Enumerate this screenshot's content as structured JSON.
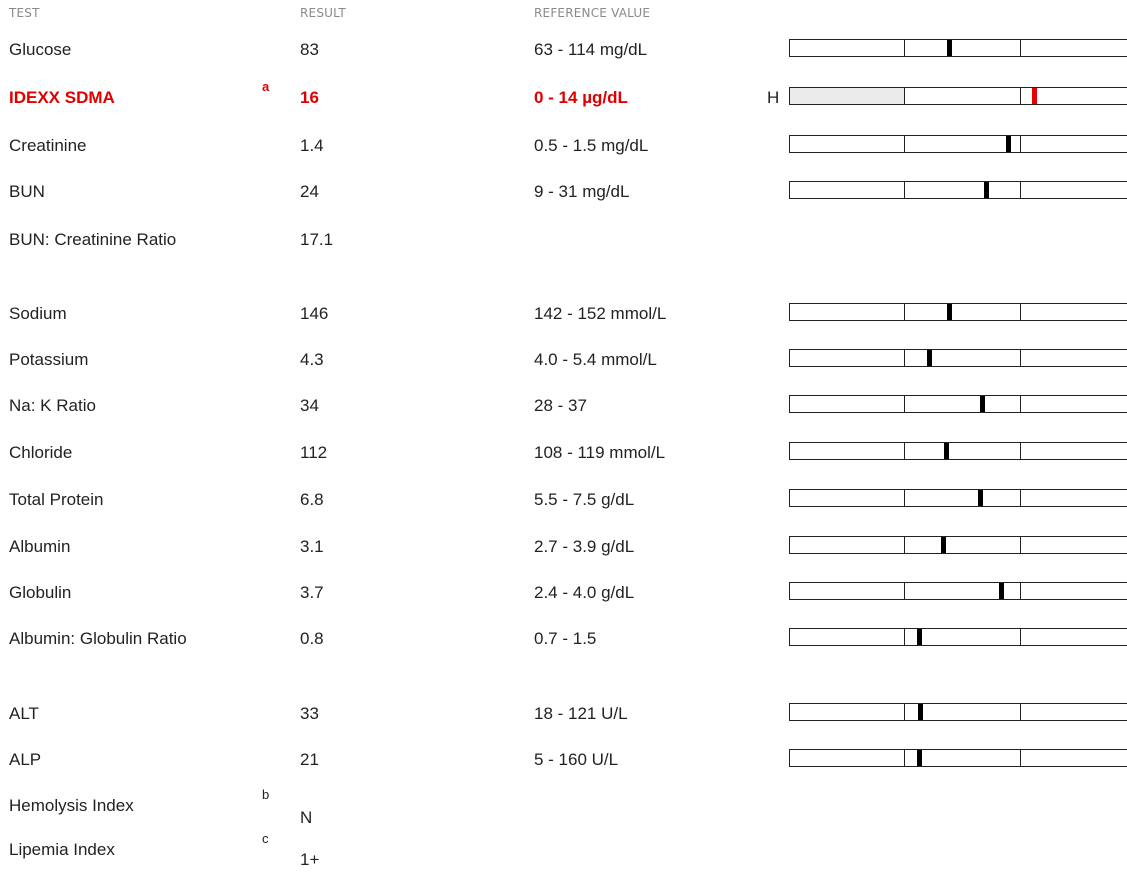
{
  "headers": {
    "test": "TEST",
    "result": "RESULT",
    "reference": "REFERENCE VALUE"
  },
  "rows": [
    {
      "test": "Glucose",
      "note": "",
      "result": "83",
      "reference": "63 - 114 mg/dL",
      "flag": "",
      "gauge": true,
      "position_fraction": 0.465,
      "high": false
    },
    {
      "test": "IDEXX SDMA",
      "note": "a",
      "result": "16",
      "reference": "0 - 14 µg/dL",
      "flag": "H",
      "gauge": true,
      "position_fraction": 0.71,
      "high": true,
      "shaded": true
    },
    {
      "test": "Creatinine",
      "note": "",
      "result": "1.4",
      "reference": "0.5 - 1.5 mg/dL",
      "flag": "",
      "gauge": true,
      "position_fraction": 0.635,
      "high": false
    },
    {
      "test": "BUN",
      "note": "",
      "result": "24",
      "reference": "9 - 31 mg/dL",
      "flag": "",
      "gauge": true,
      "position_fraction": 0.57,
      "high": false
    },
    {
      "test": "BUN: Creatinine Ratio",
      "note": "",
      "result": "17.1",
      "reference": "",
      "flag": "",
      "gauge": false,
      "position_fraction": null,
      "high": false
    },
    {
      "test": "Sodium",
      "note": "",
      "result": "146",
      "reference": "142 - 152 mmol/L",
      "flag": "",
      "gauge": true,
      "position_fraction": 0.465,
      "high": false
    },
    {
      "test": "Potassium",
      "note": "",
      "result": "4.3",
      "reference": "4.0 - 5.4 mmol/L",
      "flag": "",
      "gauge": true,
      "position_fraction": 0.405,
      "high": false
    },
    {
      "test": "Na: K Ratio",
      "note": "",
      "result": "34",
      "reference": "28 - 37",
      "flag": "",
      "gauge": true,
      "position_fraction": 0.56,
      "high": false
    },
    {
      "test": "Chloride",
      "note": "",
      "result": "112",
      "reference": "108 - 119 mmol/L",
      "flag": "",
      "gauge": true,
      "position_fraction": 0.455,
      "high": false
    },
    {
      "test": "Total Protein",
      "note": "",
      "result": "6.8",
      "reference": "5.5 - 7.5 g/dL",
      "flag": "",
      "gauge": true,
      "position_fraction": 0.555,
      "high": false
    },
    {
      "test": "Albumin",
      "note": "",
      "result": "3.1",
      "reference": "2.7 - 3.9 g/dL",
      "flag": "",
      "gauge": true,
      "position_fraction": 0.445,
      "high": false
    },
    {
      "test": "Globulin",
      "note": "",
      "result": "3.7",
      "reference": "2.4 - 4.0 g/dL",
      "flag": "",
      "gauge": true,
      "position_fraction": 0.615,
      "high": false
    },
    {
      "test": "Albumin: Globulin Ratio",
      "note": "",
      "result": "0.8",
      "reference": "0.7 - 1.5",
      "flag": "",
      "gauge": true,
      "position_fraction": 0.375,
      "high": false
    },
    {
      "test": "ALT",
      "note": "",
      "result": "33",
      "reference": "18 - 121 U/L",
      "flag": "",
      "gauge": true,
      "position_fraction": 0.38,
      "high": false
    },
    {
      "test": "ALP",
      "note": "",
      "result": "21",
      "reference": "5 - 160 U/L",
      "flag": "",
      "gauge": true,
      "position_fraction": 0.375,
      "high": false
    },
    {
      "test": "Hemolysis Index",
      "note": "b",
      "result": "N",
      "reference": "",
      "flag": "",
      "gauge": false,
      "position_fraction": null,
      "high": false
    },
    {
      "test": "Lipemia Index",
      "note": "c",
      "result": "1+",
      "reference": "",
      "flag": "",
      "gauge": false,
      "position_fraction": null,
      "high": false
    }
  ]
}
